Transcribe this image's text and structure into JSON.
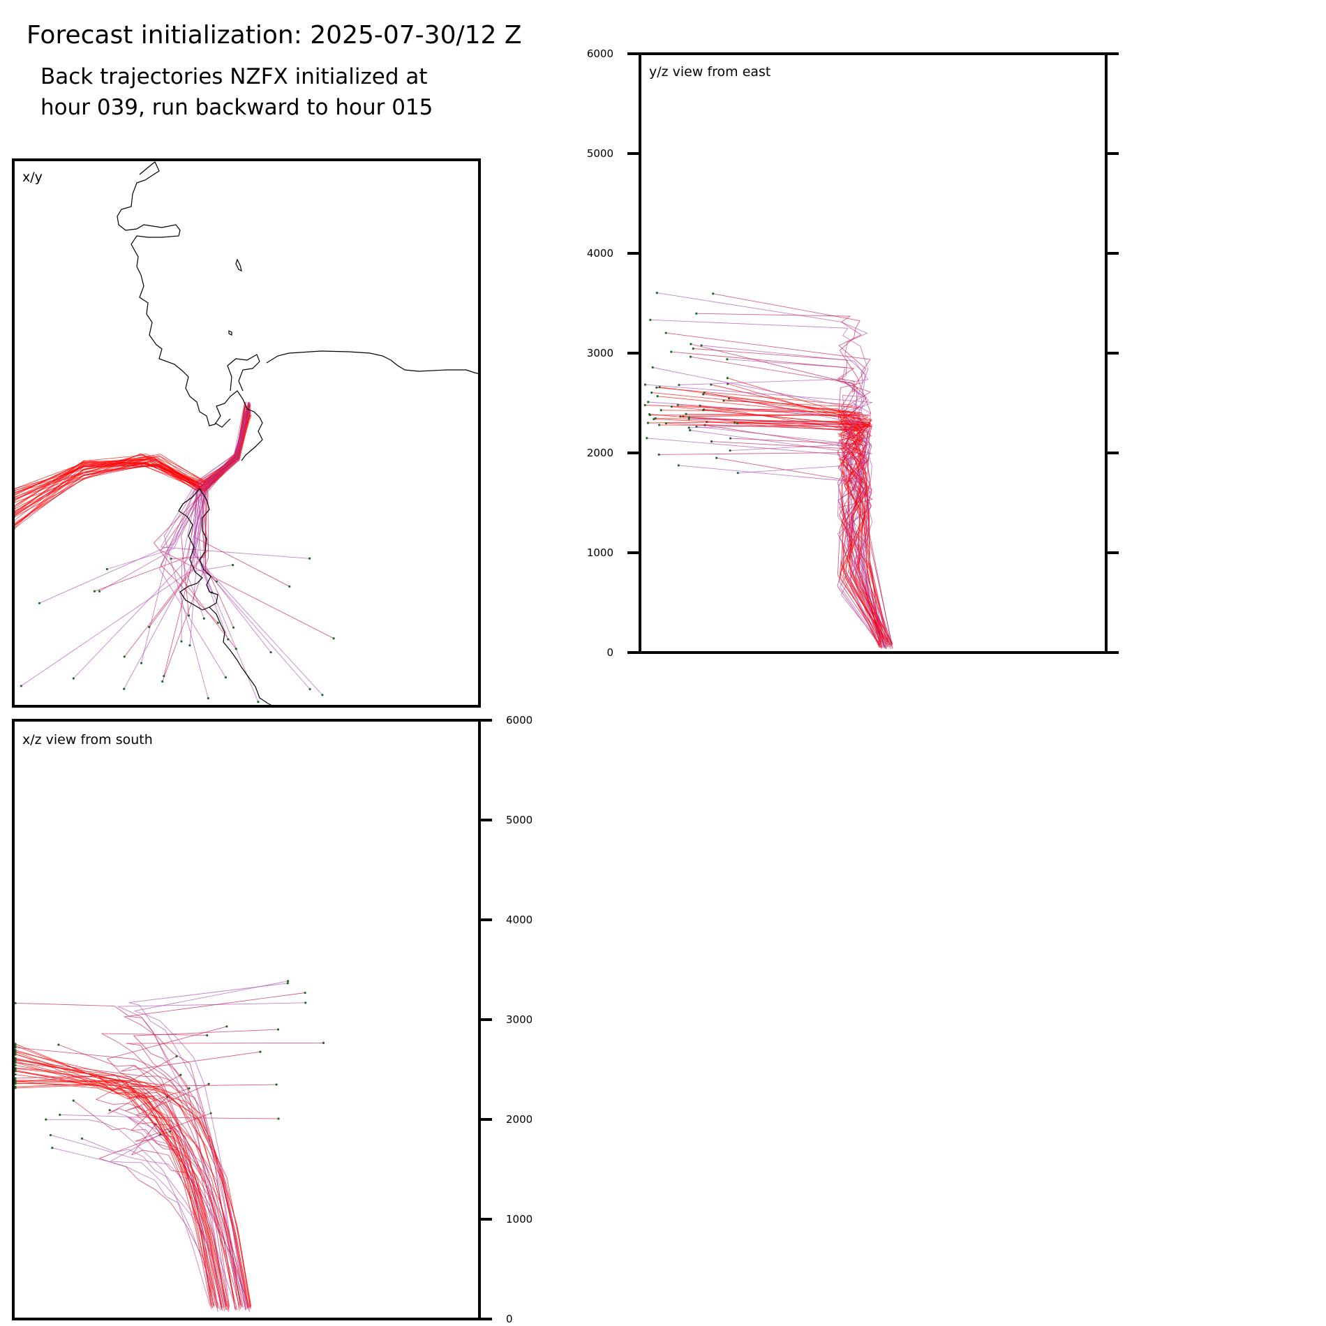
{
  "header": {
    "title": "Forecast initialization: 2025-07-30/12 Z",
    "subtitle_line1": "Back trajectories NZFX initialized at",
    "subtitle_line2": "hour 039, run backward to hour 015"
  },
  "colors": {
    "trajectory_low": "#ff0000",
    "trajectory_mid": "#cc1a4d",
    "trajectory_high": "#b04db8",
    "endpoint_marker": "#1a6b2a",
    "coastline": "#000000"
  },
  "chart_data": [
    {
      "type": "line",
      "panel": "x/y",
      "label": "x/y",
      "description_label": "x/y",
      "series": [],
      "x": [],
      "y": []
    },
    {
      "type": "line",
      "panel": "y/z",
      "label": "y/z view from east",
      "ylabel": "",
      "ylim": [
        0,
        6000
      ],
      "yticks": [
        "0",
        "1000",
        "2000",
        "3000",
        "4000",
        "5000",
        "6000"
      ],
      "y_axis_side": "left"
    },
    {
      "type": "line",
      "panel": "x/z",
      "label": "x/z view from south",
      "ylabel": "",
      "ylim": [
        0,
        6000
      ],
      "yticks": [
        "0",
        "1000",
        "2000",
        "3000",
        "4000",
        "5000",
        "6000"
      ],
      "y_axis_side": "right"
    }
  ]
}
